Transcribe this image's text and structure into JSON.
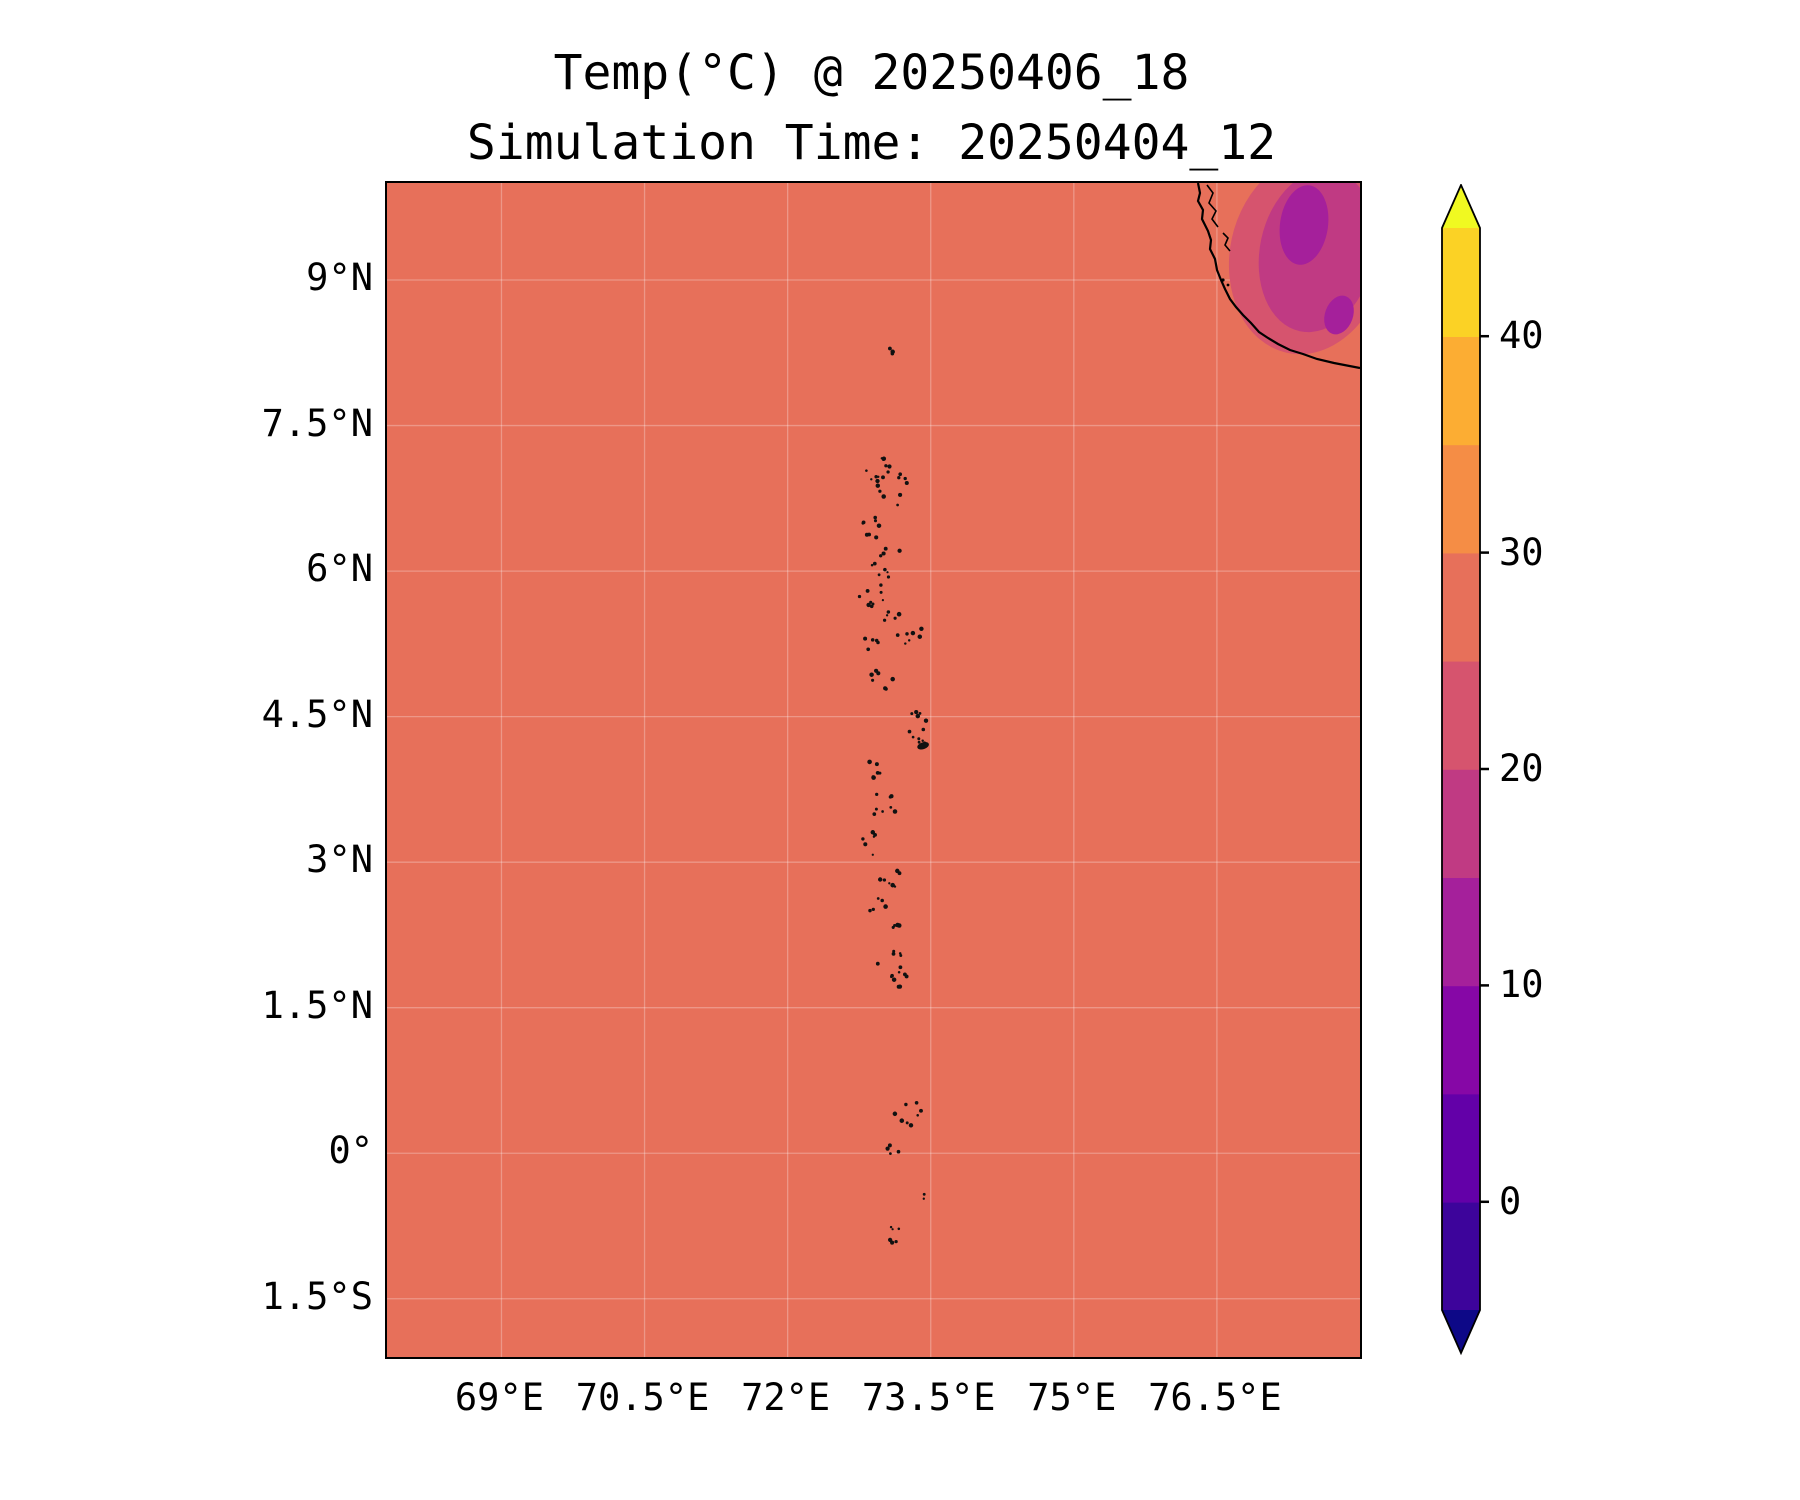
{
  "chart_data": {
    "type": "heatmap",
    "title": "Temp(°C) @ 20250406_18",
    "subtitle": "Simulation Time: 20250404_12",
    "projection": "latitude-longitude map (Maldives / southwest India region)",
    "grid": true,
    "x_axis": {
      "range": [
        67.8,
        78.0
      ],
      "ticks": [
        {
          "label": "69°E",
          "value": 69.0
        },
        {
          "label": "70.5°E",
          "value": 70.5
        },
        {
          "label": "72°E",
          "value": 72.0
        },
        {
          "label": "73.5°E",
          "value": 73.5
        },
        {
          "label": "75°E",
          "value": 75.0
        },
        {
          "label": "76.5°E",
          "value": 76.5
        }
      ]
    },
    "y_axis": {
      "range": [
        -2.1,
        10.0
      ],
      "ticks": [
        {
          "label": "9°N",
          "value": 9.0
        },
        {
          "label": "7.5°N",
          "value": 7.5
        },
        {
          "label": "6°N",
          "value": 6.0
        },
        {
          "label": "4.5°N",
          "value": 4.5
        },
        {
          "label": "3°N",
          "value": 3.0
        },
        {
          "label": "1.5°N",
          "value": 1.5
        },
        {
          "label": "0°",
          "value": 0.0
        },
        {
          "label": "1.5°S",
          "value": -1.5
        }
      ]
    },
    "colorbar": {
      "unit": "°C",
      "extend": "both",
      "levels": [
        -5,
        0,
        5,
        10,
        15,
        20,
        25,
        30,
        35,
        40,
        45
      ],
      "band_colors": [
        "#3d049b",
        "#6300a8",
        "#8607a6",
        "#a5209b",
        "#c03a83",
        "#d6546e",
        "#e7705a",
        "#f58d45",
        "#fcad33",
        "#fbd225"
      ],
      "under_color": "#0d0887",
      "over_color": "#f0f921",
      "tick_values": [
        40,
        30,
        20,
        10,
        0
      ],
      "tick_labels": [
        "40",
        "30",
        "20",
        "10",
        "0"
      ]
    },
    "field_summary": {
      "background_band_c": "25-30",
      "background_color": "#e7705a",
      "cool_patch_region": "Western Ghats / southern India, top-right corner",
      "cool_patch_bands_c": [
        "20-25",
        "15-20",
        "10-15"
      ],
      "coastline_color": "#000000"
    },
    "atoll_clusters": [
      {
        "lon": 73.05,
        "lat": 8.25,
        "n": 4,
        "r": 0.05
      },
      {
        "lon": 72.95,
        "lat": 7.05,
        "n": 9,
        "r": 0.11
      },
      {
        "lon": 73.1,
        "lat": 6.85,
        "n": 12,
        "r": 0.15
      },
      {
        "lon": 72.88,
        "lat": 6.45,
        "n": 8,
        "r": 0.1
      },
      {
        "lon": 73.05,
        "lat": 6.1,
        "n": 10,
        "r": 0.14
      },
      {
        "lon": 72.9,
        "lat": 5.75,
        "n": 9,
        "r": 0.12
      },
      {
        "lon": 73.22,
        "lat": 5.45,
        "n": 12,
        "r": 0.16
      },
      {
        "lon": 72.85,
        "lat": 5.25,
        "n": 6,
        "r": 0.08
      },
      {
        "lon": 73.0,
        "lat": 4.9,
        "n": 7,
        "r": 0.1
      },
      {
        "lon": 73.35,
        "lat": 4.4,
        "n": 9,
        "r": 0.12
      },
      {
        "lon": 73.42,
        "lat": 4.2,
        "n": 5,
        "r": 0.05,
        "blob": true
      },
      {
        "lon": 72.85,
        "lat": 3.95,
        "n": 6,
        "r": 0.1
      },
      {
        "lon": 73.0,
        "lat": 3.6,
        "n": 8,
        "r": 0.12
      },
      {
        "lon": 72.9,
        "lat": 3.2,
        "n": 7,
        "r": 0.1
      },
      {
        "lon": 73.1,
        "lat": 2.85,
        "n": 7,
        "r": 0.1
      },
      {
        "lon": 72.95,
        "lat": 2.55,
        "n": 5,
        "r": 0.08
      },
      {
        "lon": 73.15,
        "lat": 2.3,
        "n": 5,
        "r": 0.08
      },
      {
        "lon": 73.1,
        "lat": 1.95,
        "n": 9,
        "r": 0.13
      },
      {
        "lon": 73.17,
        "lat": 1.78,
        "n": 5,
        "r": 0.07
      },
      {
        "lon": 73.25,
        "lat": 0.4,
        "n": 8,
        "r": 0.13
      },
      {
        "lon": 73.12,
        "lat": 0.02,
        "n": 4,
        "r": 0.06
      },
      {
        "lon": 73.42,
        "lat": -0.45,
        "n": 2,
        "r": 0.03
      },
      {
        "lon": 73.1,
        "lat": -0.85,
        "n": 6,
        "r": 0.08
      }
    ]
  }
}
